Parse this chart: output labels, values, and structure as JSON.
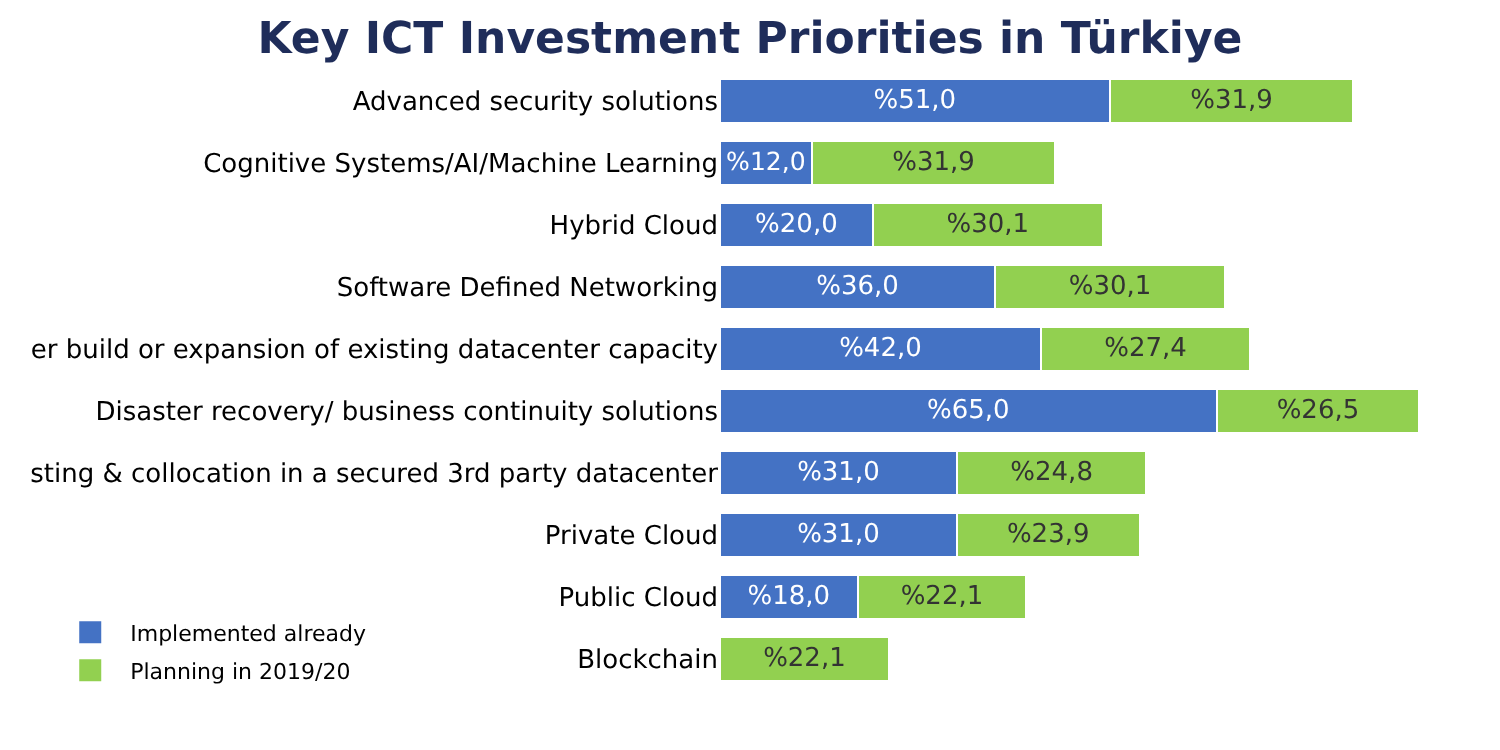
{
  "chart_data": {
    "type": "bar",
    "orientation": "horizontal",
    "stacked": true,
    "title": "Key ICT Investment Priorities in Türkiye",
    "categories": [
      "Advanced security solutions",
      "Cognitive Systems/AI/Machine Learning",
      "Hybrid Cloud",
      "Software Defined Networking",
      "er build or expansion of existing datacenter capacity",
      "Disaster recovery/ business continuity solutions",
      "sting & collocation in a secured 3rd party datacenter",
      "Private Cloud",
      "Public Cloud",
      "Blockchain"
    ],
    "series": [
      {
        "name": "Implemented already",
        "color": "#4472c4",
        "values": [
          51.0,
          12.0,
          20.0,
          36.0,
          42.0,
          65.0,
          31.0,
          31.0,
          18.0,
          null
        ],
        "value_labels": [
          "%51,0",
          "%12,0",
          "%20,0",
          "%36,0",
          "%42,0",
          "%65,0",
          "%31,0",
          "%31,0",
          "%18,0",
          null
        ]
      },
      {
        "name": "Planning in 2019/20",
        "color": "#92d050",
        "values": [
          31.9,
          31.9,
          30.1,
          30.1,
          27.4,
          26.5,
          24.8,
          23.9,
          22.1,
          22.1
        ],
        "value_labels": [
          "%31,9",
          "%31,9",
          "%30,1",
          "%30,1",
          "%27,4",
          "%26,5",
          "%24,8",
          "%23,9",
          "%22,1",
          "%22,1"
        ]
      }
    ],
    "legend": "bottom left"
  }
}
